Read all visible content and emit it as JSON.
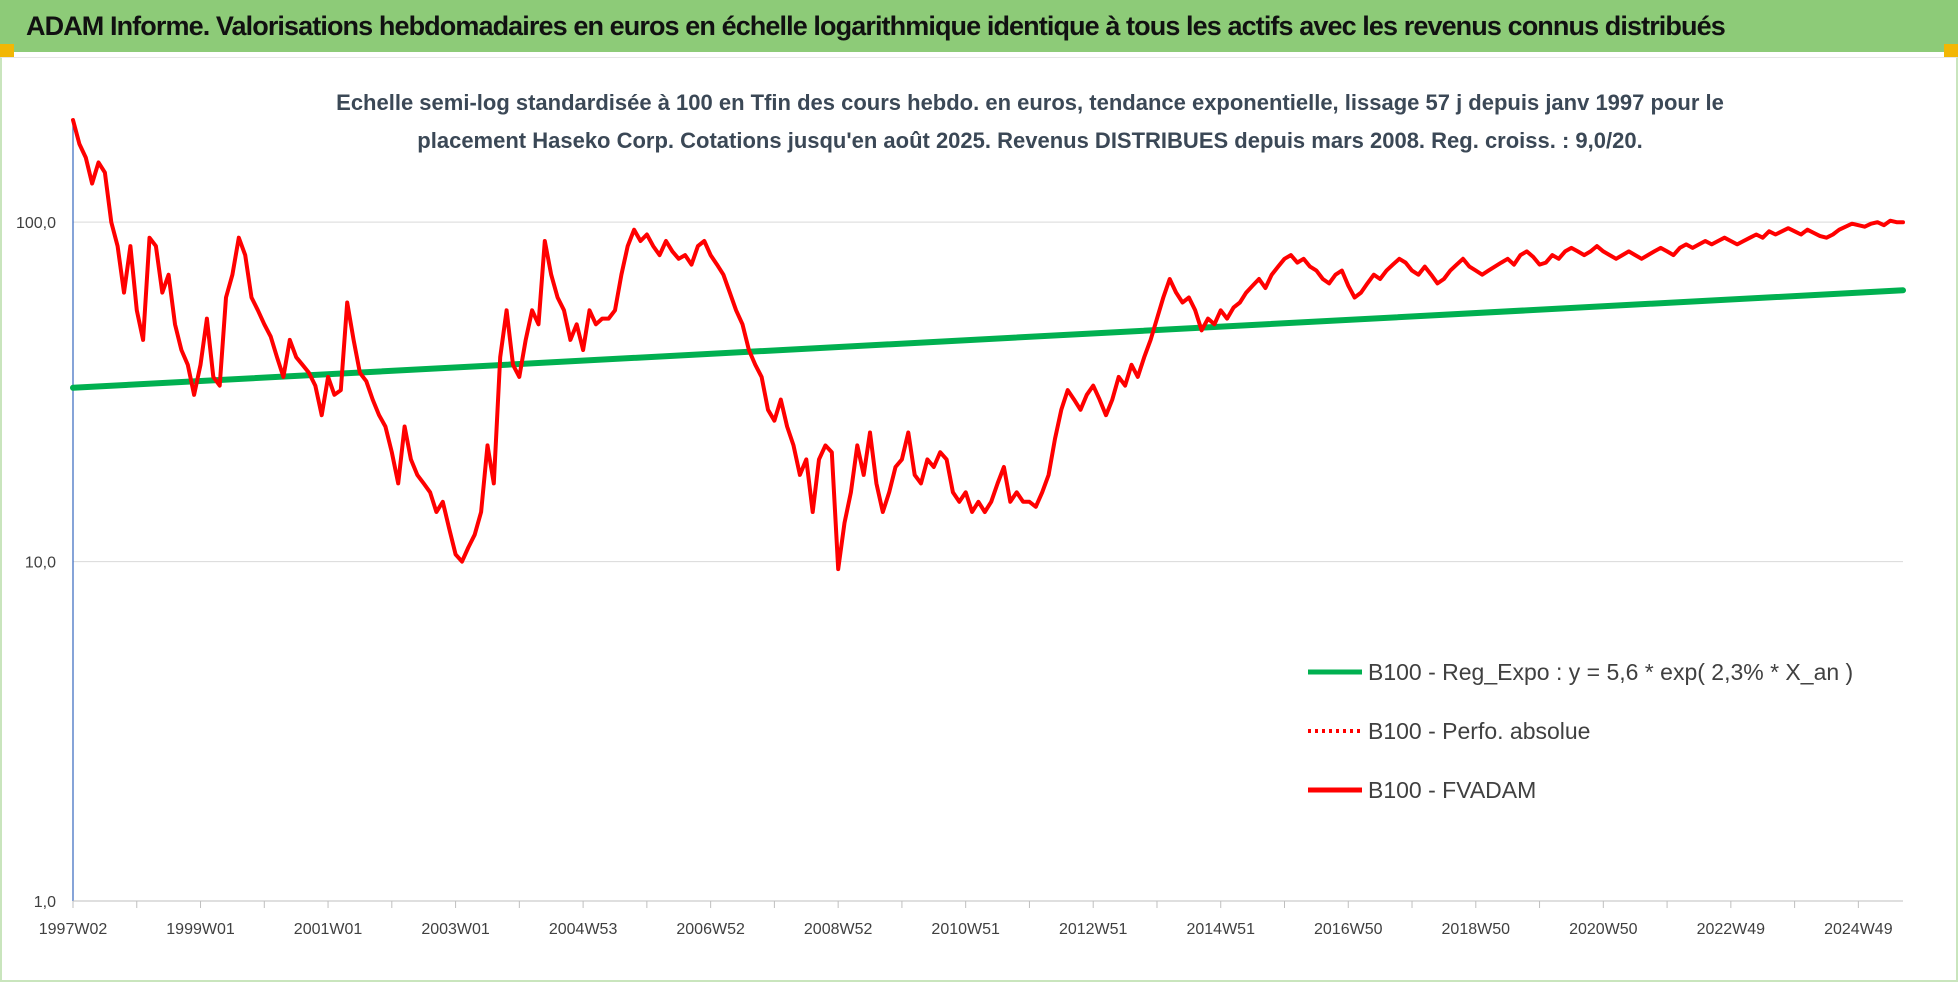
{
  "header": {
    "title": "ADAM Informe. Valorisations hebdomadaires en euros en échelle logarithmique identique à tous les actifs avec les revenus connus distribués"
  },
  "colors": {
    "header_bg": "#8dcb78",
    "accent_corner": "#f2b705",
    "trend_green": "#00b050",
    "fvadam_red": "#ff0000",
    "grid": "#d9d9d9"
  },
  "chart_data": {
    "type": "line",
    "title_lines": [
      "Echelle semi-log standardisée à 100 en Tfin des cours hebdo. en euros, tendance exponentielle, lissage 57 j depuis janv 1997 pour le",
      "placement Haseko Corp. Cotations jusqu'en août 2025. Revenus DISTRIBUES depuis mars 2008. Reg. croiss. : 9,0/20."
    ],
    "y_scale": "log",
    "ylim": [
      1,
      200
    ],
    "y_ticks": [
      {
        "value": 100,
        "label": "100,0"
      },
      {
        "value": 10,
        "label": "10,0"
      },
      {
        "value": 1,
        "label": "1,0"
      }
    ],
    "x_range": [
      1997.0,
      2025.7
    ],
    "x_ticks": [
      {
        "t": 1997.0,
        "label": "1997W02"
      },
      {
        "t": 1999.0,
        "label": "1999W01"
      },
      {
        "t": 2001.0,
        "label": "2001W01"
      },
      {
        "t": 2003.0,
        "label": "2003W01"
      },
      {
        "t": 2005.0,
        "label": "2004W53"
      },
      {
        "t": 2007.0,
        "label": "2006W52"
      },
      {
        "t": 2009.0,
        "label": "2008W52"
      },
      {
        "t": 2011.0,
        "label": "2010W51"
      },
      {
        "t": 2013.0,
        "label": "2012W51"
      },
      {
        "t": 2015.0,
        "label": "2014W51"
      },
      {
        "t": 2017.0,
        "label": "2016W50"
      },
      {
        "t": 2019.0,
        "label": "2018W50"
      },
      {
        "t": 2021.0,
        "label": "2020W50"
      },
      {
        "t": 2023.0,
        "label": "2022W49"
      },
      {
        "t": 2025.0,
        "label": "2024W49"
      }
    ],
    "gridlines": true,
    "legend_position": "right-middle",
    "series": [
      {
        "name": "B100 - Reg_Expo : y = 5,6 * exp( 2,3% *  X_an )",
        "color": "#00b050",
        "style": "solid",
        "points": [
          [
            1997.0,
            32.5
          ],
          [
            2025.7,
            63.0
          ]
        ]
      },
      {
        "name": "B100 - Perfo. absolue",
        "color": "#ff0000",
        "style": "dotted",
        "points": []
      },
      {
        "name": "B100 - FVADAM",
        "color": "#ff0000",
        "style": "solid",
        "points": [
          [
            1997.0,
            200
          ],
          [
            1997.1,
            170
          ],
          [
            1997.2,
            155
          ],
          [
            1997.3,
            130
          ],
          [
            1997.4,
            150
          ],
          [
            1997.5,
            140
          ],
          [
            1997.6,
            100
          ],
          [
            1997.7,
            85
          ],
          [
            1997.8,
            62
          ],
          [
            1997.9,
            85
          ],
          [
            1998.0,
            55
          ],
          [
            1998.1,
            45
          ],
          [
            1998.2,
            90
          ],
          [
            1998.3,
            85
          ],
          [
            1998.4,
            62
          ],
          [
            1998.5,
            70
          ],
          [
            1998.6,
            50
          ],
          [
            1998.7,
            42
          ],
          [
            1998.8,
            38
          ],
          [
            1998.9,
            31
          ],
          [
            1999.0,
            38
          ],
          [
            1999.1,
            52
          ],
          [
            1999.2,
            35
          ],
          [
            1999.3,
            33
          ],
          [
            1999.4,
            60
          ],
          [
            1999.5,
            70
          ],
          [
            1999.6,
            90
          ],
          [
            1999.7,
            80
          ],
          [
            1999.8,
            60
          ],
          [
            1999.9,
            55
          ],
          [
            2000.0,
            50
          ],
          [
            2000.1,
            46
          ],
          [
            2000.2,
            40
          ],
          [
            2000.3,
            35
          ],
          [
            2000.4,
            45
          ],
          [
            2000.5,
            40
          ],
          [
            2000.6,
            38
          ],
          [
            2000.7,
            36
          ],
          [
            2000.8,
            33
          ],
          [
            2000.9,
            27
          ],
          [
            2001.0,
            35
          ],
          [
            2001.1,
            31
          ],
          [
            2001.2,
            32
          ],
          [
            2001.3,
            58
          ],
          [
            2001.4,
            45
          ],
          [
            2001.5,
            36
          ],
          [
            2001.6,
            34
          ],
          [
            2001.7,
            30
          ],
          [
            2001.8,
            27
          ],
          [
            2001.9,
            25
          ],
          [
            2002.0,
            21
          ],
          [
            2002.1,
            17
          ],
          [
            2002.2,
            25
          ],
          [
            2002.3,
            20
          ],
          [
            2002.4,
            18
          ],
          [
            2002.5,
            17
          ],
          [
            2002.6,
            16
          ],
          [
            2002.7,
            14
          ],
          [
            2002.8,
            15
          ],
          [
            2002.9,
            12.5
          ],
          [
            2003.0,
            10.5
          ],
          [
            2003.1,
            10
          ],
          [
            2003.2,
            11
          ],
          [
            2003.3,
            12
          ],
          [
            2003.4,
            14
          ],
          [
            2003.5,
            22
          ],
          [
            2003.6,
            17
          ],
          [
            2003.7,
            40
          ],
          [
            2003.8,
            55
          ],
          [
            2003.9,
            38
          ],
          [
            2004.0,
            35
          ],
          [
            2004.1,
            45
          ],
          [
            2004.2,
            55
          ],
          [
            2004.3,
            50
          ],
          [
            2004.4,
            88
          ],
          [
            2004.5,
            70
          ],
          [
            2004.6,
            60
          ],
          [
            2004.7,
            55
          ],
          [
            2004.8,
            45
          ],
          [
            2004.9,
            50
          ],
          [
            2005.0,
            42
          ],
          [
            2005.1,
            55
          ],
          [
            2005.2,
            50
          ],
          [
            2005.3,
            52
          ],
          [
            2005.4,
            52
          ],
          [
            2005.5,
            55
          ],
          [
            2005.6,
            70
          ],
          [
            2005.7,
            85
          ],
          [
            2005.8,
            95
          ],
          [
            2005.9,
            88
          ],
          [
            2006.0,
            92
          ],
          [
            2006.1,
            85
          ],
          [
            2006.2,
            80
          ],
          [
            2006.3,
            88
          ],
          [
            2006.4,
            82
          ],
          [
            2006.5,
            78
          ],
          [
            2006.6,
            80
          ],
          [
            2006.7,
            75
          ],
          [
            2006.8,
            85
          ],
          [
            2006.9,
            88
          ],
          [
            2007.0,
            80
          ],
          [
            2007.1,
            75
          ],
          [
            2007.2,
            70
          ],
          [
            2007.3,
            62
          ],
          [
            2007.4,
            55
          ],
          [
            2007.5,
            50
          ],
          [
            2007.6,
            42
          ],
          [
            2007.7,
            38
          ],
          [
            2007.8,
            35
          ],
          [
            2007.9,
            28
          ],
          [
            2008.0,
            26
          ],
          [
            2008.1,
            30
          ],
          [
            2008.2,
            25
          ],
          [
            2008.3,
            22
          ],
          [
            2008.4,
            18
          ],
          [
            2008.5,
            20
          ],
          [
            2008.6,
            14
          ],
          [
            2008.7,
            20
          ],
          [
            2008.8,
            22
          ],
          [
            2008.9,
            21
          ],
          [
            2009.0,
            9.5
          ],
          [
            2009.1,
            13
          ],
          [
            2009.2,
            16
          ],
          [
            2009.3,
            22
          ],
          [
            2009.4,
            18
          ],
          [
            2009.5,
            24
          ],
          [
            2009.6,
            17
          ],
          [
            2009.7,
            14
          ],
          [
            2009.8,
            16
          ],
          [
            2009.9,
            19
          ],
          [
            2010.0,
            20
          ],
          [
            2010.1,
            24
          ],
          [
            2010.2,
            18
          ],
          [
            2010.3,
            17
          ],
          [
            2010.4,
            20
          ],
          [
            2010.5,
            19
          ],
          [
            2010.6,
            21
          ],
          [
            2010.7,
            20
          ],
          [
            2010.8,
            16
          ],
          [
            2010.9,
            15
          ],
          [
            2011.0,
            16
          ],
          [
            2011.1,
            14
          ],
          [
            2011.2,
            15
          ],
          [
            2011.3,
            14
          ],
          [
            2011.4,
            15
          ],
          [
            2011.5,
            17
          ],
          [
            2011.6,
            19
          ],
          [
            2011.7,
            15
          ],
          [
            2011.8,
            16
          ],
          [
            2011.9,
            15
          ],
          [
            2012.0,
            15
          ],
          [
            2012.1,
            14.5
          ],
          [
            2012.2,
            16
          ],
          [
            2012.3,
            18
          ],
          [
            2012.4,
            23
          ],
          [
            2012.5,
            28
          ],
          [
            2012.6,
            32
          ],
          [
            2012.7,
            30
          ],
          [
            2012.8,
            28
          ],
          [
            2012.9,
            31
          ],
          [
            2013.0,
            33
          ],
          [
            2013.1,
            30
          ],
          [
            2013.2,
            27
          ],
          [
            2013.3,
            30
          ],
          [
            2013.4,
            35
          ],
          [
            2013.5,
            33
          ],
          [
            2013.6,
            38
          ],
          [
            2013.7,
            35
          ],
          [
            2013.8,
            40
          ],
          [
            2013.9,
            45
          ],
          [
            2014.0,
            52
          ],
          [
            2014.1,
            60
          ],
          [
            2014.2,
            68
          ],
          [
            2014.3,
            62
          ],
          [
            2014.4,
            58
          ],
          [
            2014.5,
            60
          ],
          [
            2014.6,
            55
          ],
          [
            2014.7,
            48
          ],
          [
            2014.8,
            52
          ],
          [
            2014.9,
            50
          ],
          [
            2015.0,
            55
          ],
          [
            2015.1,
            52
          ],
          [
            2015.2,
            56
          ],
          [
            2015.3,
            58
          ],
          [
            2015.4,
            62
          ],
          [
            2015.5,
            65
          ],
          [
            2015.6,
            68
          ],
          [
            2015.7,
            64
          ],
          [
            2015.8,
            70
          ],
          [
            2015.9,
            74
          ],
          [
            2016.0,
            78
          ],
          [
            2016.1,
            80
          ],
          [
            2016.2,
            76
          ],
          [
            2016.3,
            78
          ],
          [
            2016.4,
            74
          ],
          [
            2016.5,
            72
          ],
          [
            2016.6,
            68
          ],
          [
            2016.7,
            66
          ],
          [
            2016.8,
            70
          ],
          [
            2016.9,
            72
          ],
          [
            2017.0,
            65
          ],
          [
            2017.1,
            60
          ],
          [
            2017.2,
            62
          ],
          [
            2017.3,
            66
          ],
          [
            2017.4,
            70
          ],
          [
            2017.5,
            68
          ],
          [
            2017.6,
            72
          ],
          [
            2017.7,
            75
          ],
          [
            2017.8,
            78
          ],
          [
            2017.9,
            76
          ],
          [
            2018.0,
            72
          ],
          [
            2018.1,
            70
          ],
          [
            2018.2,
            74
          ],
          [
            2018.3,
            70
          ],
          [
            2018.4,
            66
          ],
          [
            2018.5,
            68
          ],
          [
            2018.6,
            72
          ],
          [
            2018.7,
            75
          ],
          [
            2018.8,
            78
          ],
          [
            2018.9,
            74
          ],
          [
            2019.0,
            72
          ],
          [
            2019.1,
            70
          ],
          [
            2019.2,
            72
          ],
          [
            2019.3,
            74
          ],
          [
            2019.4,
            76
          ],
          [
            2019.5,
            78
          ],
          [
            2019.6,
            75
          ],
          [
            2019.7,
            80
          ],
          [
            2019.8,
            82
          ],
          [
            2019.9,
            79
          ],
          [
            2020.0,
            75
          ],
          [
            2020.1,
            76
          ],
          [
            2020.2,
            80
          ],
          [
            2020.3,
            78
          ],
          [
            2020.4,
            82
          ],
          [
            2020.5,
            84
          ],
          [
            2020.6,
            82
          ],
          [
            2020.7,
            80
          ],
          [
            2020.8,
            82
          ],
          [
            2020.9,
            85
          ],
          [
            2021.0,
            82
          ],
          [
            2021.1,
            80
          ],
          [
            2021.2,
            78
          ],
          [
            2021.3,
            80
          ],
          [
            2021.4,
            82
          ],
          [
            2021.5,
            80
          ],
          [
            2021.6,
            78
          ],
          [
            2021.7,
            80
          ],
          [
            2021.8,
            82
          ],
          [
            2021.9,
            84
          ],
          [
            2022.0,
            82
          ],
          [
            2022.1,
            80
          ],
          [
            2022.2,
            84
          ],
          [
            2022.3,
            86
          ],
          [
            2022.4,
            84
          ],
          [
            2022.5,
            86
          ],
          [
            2022.6,
            88
          ],
          [
            2022.7,
            86
          ],
          [
            2022.8,
            88
          ],
          [
            2022.9,
            90
          ],
          [
            2023.0,
            88
          ],
          [
            2023.1,
            86
          ],
          [
            2023.2,
            88
          ],
          [
            2023.3,
            90
          ],
          [
            2023.4,
            92
          ],
          [
            2023.5,
            90
          ],
          [
            2023.6,
            94
          ],
          [
            2023.7,
            92
          ],
          [
            2023.8,
            94
          ],
          [
            2023.9,
            96
          ],
          [
            2024.0,
            94
          ],
          [
            2024.1,
            92
          ],
          [
            2024.2,
            95
          ],
          [
            2024.3,
            93
          ],
          [
            2024.4,
            91
          ],
          [
            2024.5,
            90
          ],
          [
            2024.6,
            92
          ],
          [
            2024.7,
            95
          ],
          [
            2024.8,
            97
          ],
          [
            2024.9,
            99
          ],
          [
            2025.0,
            98
          ],
          [
            2025.1,
            97
          ],
          [
            2025.2,
            99
          ],
          [
            2025.3,
            100
          ],
          [
            2025.4,
            98
          ],
          [
            2025.5,
            101
          ],
          [
            2025.6,
            100
          ],
          [
            2025.7,
            100
          ]
        ]
      }
    ]
  }
}
